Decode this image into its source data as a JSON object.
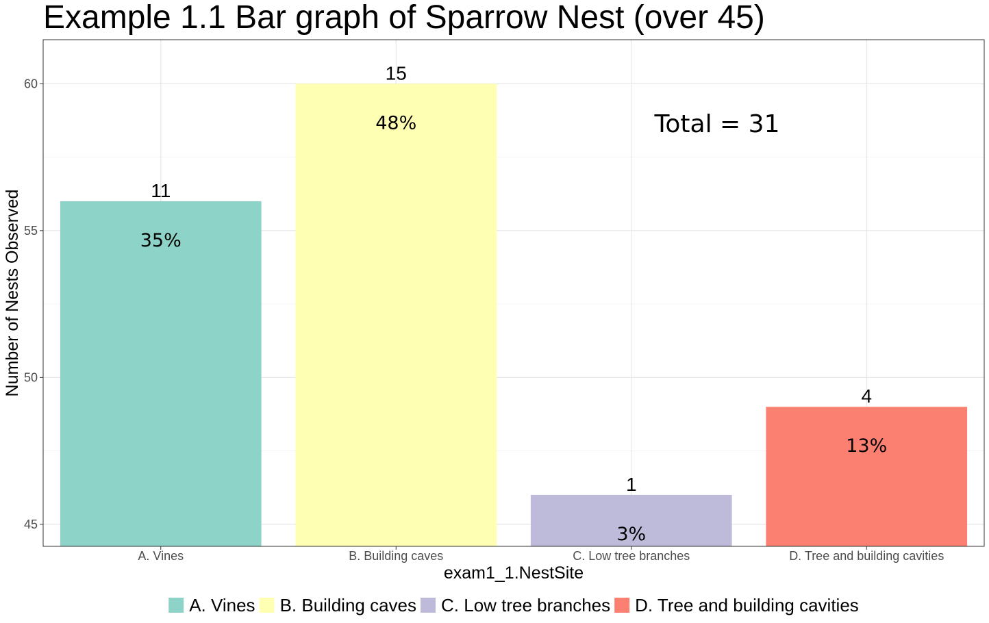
{
  "chart_data": {
    "type": "bar",
    "title": "Example 1.1 Bar graph of Sparrow Nest (over 45)",
    "xlabel": "exam1_1.NestSite",
    "ylabel": "Number of Nests Observed",
    "categories": [
      "A. Vines",
      "B. Building caves",
      "C. Low tree branches",
      "D. Tree and building cavities"
    ],
    "values": [
      56,
      60,
      46,
      49
    ],
    "counts": [
      "11",
      "15",
      "1",
      "4"
    ],
    "percent_labels": [
      "35%",
      "48%",
      "3%",
      "13%"
    ],
    "colors": [
      "#8dd3c7",
      "#ffffb3",
      "#bebada",
      "#fb8072"
    ],
    "ylim": [
      44.25,
      61.5
    ],
    "yticks": [
      45,
      50,
      55,
      60
    ],
    "grid": true,
    "annotation": "Total = 31",
    "legend_position": "bottom"
  }
}
